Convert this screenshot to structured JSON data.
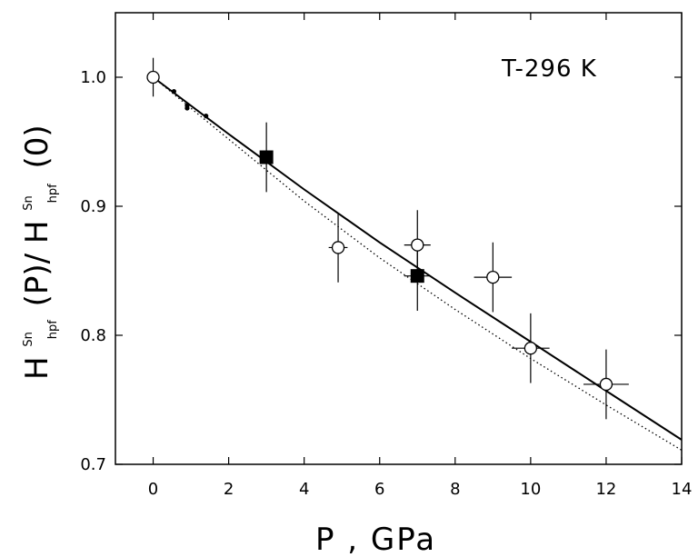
{
  "chart_data": {
    "type": "scatter",
    "annotation": "T-296 K",
    "xlabel": "P   , GPa",
    "ylabel": {
      "H1": "H",
      "sup1": "Sn",
      "sub1": "hpf",
      "mid": "(P)/",
      "H2": "H",
      "sup2": "Sn",
      "sub2": "hpf",
      "end": "(0)"
    },
    "xlim": [
      -1,
      14
    ],
    "ylim": [
      0.7,
      1.05
    ],
    "xticks": [
      "0",
      "2",
      "4",
      "6",
      "8",
      "10",
      "12",
      "14"
    ],
    "yticks": [
      "0.7",
      "0.8",
      "0.9",
      "1.0"
    ],
    "grid": false,
    "series": [
      {
        "marker": "open-circle",
        "points": [
          {
            "x": 0,
            "y": 1.0,
            "yerr": 0.015
          },
          {
            "x": 4.9,
            "y": 0.868,
            "xerr": 0.25,
            "yerr": 0.027
          },
          {
            "x": 7.0,
            "y": 0.87,
            "xerr": 0.35,
            "yerr": 0.027
          },
          {
            "x": 9.0,
            "y": 0.845,
            "xerr": 0.5,
            "yerr": 0.027
          },
          {
            "x": 10.0,
            "y": 0.79,
            "xerr": 0.5,
            "yerr": 0.027
          },
          {
            "x": 12.0,
            "y": 0.762,
            "xerr": 0.6,
            "yerr": 0.027
          }
        ]
      },
      {
        "marker": "filled-square",
        "points": [
          {
            "x": 3.0,
            "y": 0.938,
            "yerr": 0.027
          },
          {
            "x": 7.0,
            "y": 0.846,
            "xerr": 0.35,
            "yerr": 0.027
          }
        ]
      },
      {
        "marker": "small-dot",
        "points": [
          {
            "x": 0.55,
            "y": 0.989
          },
          {
            "x": 0.9,
            "y": 0.978
          },
          {
            "x": 0.9,
            "y": 0.976
          },
          {
            "x": 1.4,
            "y": 0.97
          }
        ]
      },
      {
        "marker": "solid-line",
        "points": [
          {
            "x": 0,
            "y": 1.0
          },
          {
            "x": 2,
            "y": 0.956
          },
          {
            "x": 4,
            "y": 0.913
          },
          {
            "x": 6,
            "y": 0.872
          },
          {
            "x": 8,
            "y": 0.833
          },
          {
            "x": 10,
            "y": 0.795
          },
          {
            "x": 12,
            "y": 0.757
          },
          {
            "x": 14,
            "y": 0.719
          }
        ]
      },
      {
        "marker": "dotted-line",
        "points": [
          {
            "x": 0,
            "y": 1.0
          },
          {
            "x": 2,
            "y": 0.952
          },
          {
            "x": 4,
            "y": 0.904
          },
          {
            "x": 6,
            "y": 0.86
          },
          {
            "x": 8,
            "y": 0.82
          },
          {
            "x": 10,
            "y": 0.782
          },
          {
            "x": 12,
            "y": 0.746
          },
          {
            "x": 14,
            "y": 0.711
          }
        ]
      }
    ]
  }
}
